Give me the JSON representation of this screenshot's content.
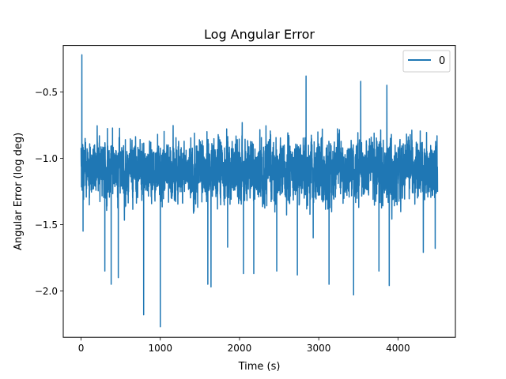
{
  "chart_data": {
    "type": "line",
    "title": "Log Angular Error",
    "xlabel": "Time (s)",
    "ylabel": "Angular Error (log deg)",
    "xlim": [
      -225,
      4725
    ],
    "ylim": [
      -2.35,
      -0.15
    ],
    "xticks": [
      0,
      1000,
      2000,
      3000,
      4000
    ],
    "xtick_labels": [
      "0",
      "1000",
      "2000",
      "3000",
      "4000"
    ],
    "yticks": [
      -2.0,
      -1.5,
      -1.0,
      -0.5
    ],
    "ytick_labels": [
      "−2.0",
      "−1.5",
      "−1.0",
      "−0.5"
    ],
    "grid": false,
    "legend": {
      "position": "top-right",
      "entries": [
        "0"
      ]
    },
    "colors": {
      "series": "#1f77b4"
    },
    "series": [
      {
        "name": "0",
        "x_range": [
          0,
          4500
        ],
        "num_points": 4501,
        "baseline": -1.08,
        "amplitude": 0.45,
        "max": -0.22,
        "min": -2.27,
        "extremes": [
          {
            "x": 10,
            "y": -0.22
          },
          {
            "x": 25,
            "y": -1.55
          },
          {
            "x": 300,
            "y": -1.85
          },
          {
            "x": 380,
            "y": -1.95
          },
          {
            "x": 470,
            "y": -1.9
          },
          {
            "x": 790,
            "y": -2.18
          },
          {
            "x": 1000,
            "y": -2.27
          },
          {
            "x": 1600,
            "y": -1.95
          },
          {
            "x": 1640,
            "y": -1.97
          },
          {
            "x": 1850,
            "y": -1.67
          },
          {
            "x": 2050,
            "y": -1.87
          },
          {
            "x": 2180,
            "y": -1.87
          },
          {
            "x": 2470,
            "y": -1.85
          },
          {
            "x": 2730,
            "y": -1.88
          },
          {
            "x": 2840,
            "y": -0.38
          },
          {
            "x": 2930,
            "y": -1.6
          },
          {
            "x": 3130,
            "y": -1.95
          },
          {
            "x": 3440,
            "y": -2.03
          },
          {
            "x": 3530,
            "y": -0.42
          },
          {
            "x": 3760,
            "y": -1.85
          },
          {
            "x": 3860,
            "y": -0.45
          },
          {
            "x": 3890,
            "y": -1.96
          },
          {
            "x": 4320,
            "y": -1.71
          },
          {
            "x": 4470,
            "y": -1.68
          }
        ]
      }
    ]
  }
}
